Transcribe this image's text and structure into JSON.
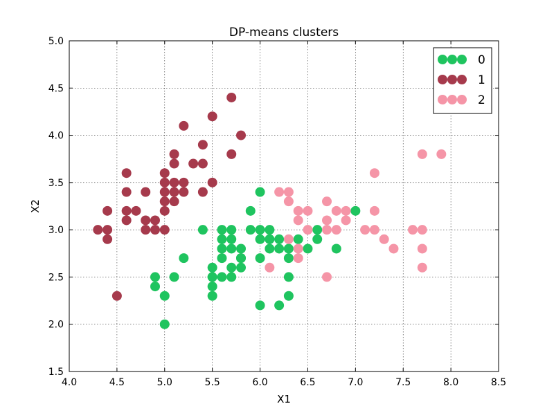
{
  "chart_data": {
    "type": "scatter",
    "title": "DP-means clusters",
    "xlabel": "X1",
    "ylabel": "X2",
    "xlim": [
      4.0,
      8.5
    ],
    "ylim": [
      1.5,
      5.0
    ],
    "x_ticks": [
      "4.0",
      "4.5",
      "5.0",
      "5.5",
      "6.0",
      "6.5",
      "7.0",
      "7.5",
      "8.0",
      "8.5"
    ],
    "y_ticks": [
      "1.5",
      "2.0",
      "2.5",
      "3.0",
      "3.5",
      "4.0",
      "4.5",
      "5.0"
    ],
    "grid": true,
    "legend_position": "top-right",
    "series": [
      {
        "name": "0",
        "color": "#1fc45f",
        "points": [
          [
            5.0,
            2.0
          ],
          [
            5.0,
            2.3
          ],
          [
            4.9,
            2.4
          ],
          [
            4.9,
            2.5
          ],
          [
            5.1,
            2.5
          ],
          [
            5.2,
            2.7
          ],
          [
            5.4,
            3.0
          ],
          [
            5.5,
            2.3
          ],
          [
            5.5,
            2.4
          ],
          [
            5.5,
            2.5
          ],
          [
            5.5,
            2.6
          ],
          [
            5.6,
            2.5
          ],
          [
            5.7,
            2.5
          ],
          [
            5.5,
            2.5
          ],
          [
            5.6,
            2.7
          ],
          [
            5.6,
            2.8
          ],
          [
            5.6,
            2.9
          ],
          [
            5.6,
            3.0
          ],
          [
            5.7,
            2.6
          ],
          [
            5.7,
            2.8
          ],
          [
            5.7,
            2.9
          ],
          [
            5.7,
            3.0
          ],
          [
            5.8,
            2.6
          ],
          [
            5.8,
            2.7
          ],
          [
            5.8,
            2.8
          ],
          [
            5.8,
            2.7
          ],
          [
            5.9,
            3.0
          ],
          [
            5.9,
            3.2
          ],
          [
            6.0,
            2.2
          ],
          [
            6.0,
            2.7
          ],
          [
            6.0,
            2.9
          ],
          [
            6.0,
            3.0
          ],
          [
            6.0,
            3.4
          ],
          [
            6.1,
            2.8
          ],
          [
            6.1,
            2.9
          ],
          [
            6.1,
            3.0
          ],
          [
            6.1,
            2.9
          ],
          [
            6.2,
            2.2
          ],
          [
            6.2,
            2.8
          ],
          [
            6.2,
            2.9
          ],
          [
            6.3,
            2.3
          ],
          [
            6.3,
            2.5
          ],
          [
            6.3,
            2.7
          ],
          [
            6.3,
            2.8
          ],
          [
            6.4,
            2.9
          ],
          [
            6.5,
            2.8
          ],
          [
            6.6,
            2.9
          ],
          [
            6.6,
            3.0
          ],
          [
            6.8,
            2.8
          ],
          [
            7.0,
            3.2
          ]
        ]
      },
      {
        "name": "1",
        "color": "#a63a4c",
        "points": [
          [
            4.3,
            3.0
          ],
          [
            4.4,
            2.9
          ],
          [
            4.4,
            3.0
          ],
          [
            4.4,
            3.2
          ],
          [
            4.5,
            2.3
          ],
          [
            4.6,
            3.1
          ],
          [
            4.6,
            3.2
          ],
          [
            4.6,
            3.4
          ],
          [
            4.6,
            3.6
          ],
          [
            4.7,
            3.2
          ],
          [
            4.8,
            3.0
          ],
          [
            4.8,
            3.1
          ],
          [
            4.8,
            3.4
          ],
          [
            4.9,
            3.0
          ],
          [
            4.9,
            3.1
          ],
          [
            5.0,
            3.0
          ],
          [
            5.0,
            3.2
          ],
          [
            5.0,
            3.3
          ],
          [
            5.0,
            3.4
          ],
          [
            5.0,
            3.5
          ],
          [
            5.0,
            3.6
          ],
          [
            5.1,
            3.3
          ],
          [
            5.1,
            3.4
          ],
          [
            5.1,
            3.5
          ],
          [
            5.1,
            3.7
          ],
          [
            5.1,
            3.8
          ],
          [
            5.2,
            3.4
          ],
          [
            5.2,
            3.5
          ],
          [
            5.2,
            4.1
          ],
          [
            5.3,
            3.7
          ],
          [
            5.4,
            3.4
          ],
          [
            5.4,
            3.7
          ],
          [
            5.4,
            3.9
          ],
          [
            5.5,
            3.5
          ],
          [
            5.5,
            4.2
          ],
          [
            5.7,
            3.8
          ],
          [
            5.7,
            4.4
          ],
          [
            5.8,
            4.0
          ]
        ]
      },
      {
        "name": "2",
        "color": "#f595a7",
        "points": [
          [
            6.1,
            2.6
          ],
          [
            6.2,
            3.4
          ],
          [
            6.3,
            2.9
          ],
          [
            6.3,
            3.3
          ],
          [
            6.3,
            3.4
          ],
          [
            6.4,
            2.7
          ],
          [
            6.4,
            2.8
          ],
          [
            6.4,
            3.1
          ],
          [
            6.4,
            3.2
          ],
          [
            6.5,
            3.0
          ],
          [
            6.5,
            3.2
          ],
          [
            6.7,
            2.5
          ],
          [
            6.7,
            3.0
          ],
          [
            6.7,
            3.1
          ],
          [
            6.7,
            3.3
          ],
          [
            6.8,
            3.0
          ],
          [
            6.8,
            3.2
          ],
          [
            6.9,
            3.1
          ],
          [
            6.9,
            3.2
          ],
          [
            7.1,
            3.0
          ],
          [
            7.2,
            3.0
          ],
          [
            7.2,
            3.2
          ],
          [
            7.2,
            3.6
          ],
          [
            7.3,
            2.9
          ],
          [
            7.4,
            2.8
          ],
          [
            7.6,
            3.0
          ],
          [
            7.7,
            2.6
          ],
          [
            7.7,
            2.8
          ],
          [
            7.7,
            3.0
          ],
          [
            7.7,
            3.8
          ],
          [
            7.9,
            3.8
          ]
        ]
      }
    ]
  }
}
